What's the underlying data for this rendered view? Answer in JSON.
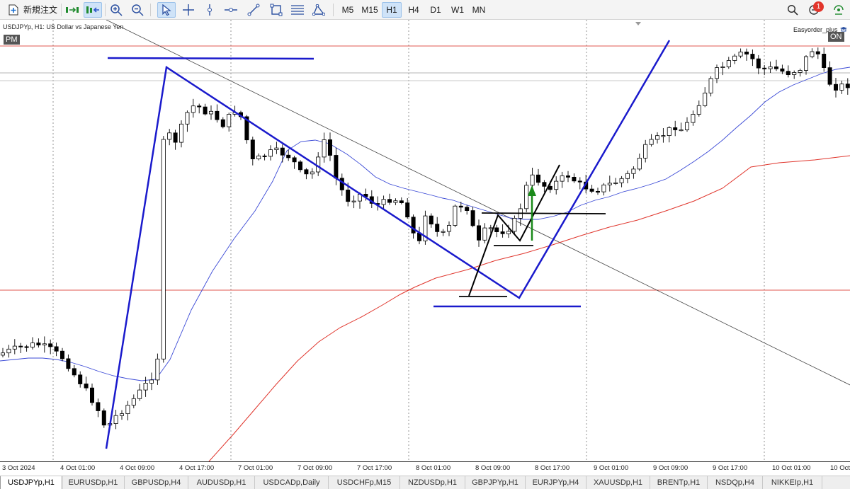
{
  "toolbar": {
    "new_order_label": "新規注文",
    "timeframes": [
      "M5",
      "M15",
      "H1",
      "H4",
      "D1",
      "W1",
      "MN"
    ],
    "active_timeframe": "H1",
    "notification_count": "1",
    "icons": [
      "new-order-icon",
      "algo-trading-icon",
      "one-click-trading-icon",
      "zoom-in-icon",
      "zoom-out-icon",
      "cursor-icon",
      "crosshair-icon",
      "vertical-line-icon",
      "horizontal-line-icon",
      "trendline-icon",
      "rectangle-icon",
      "fibonacci-icon",
      "shapes-icon",
      "search-icon",
      "notification-icon",
      "signal-icon"
    ]
  },
  "chart": {
    "symbol_label": "USDJPYp, H1:  US Dollar vs Japanese Yen",
    "session_badge": "PM",
    "ea_name": "Easyorder_plus",
    "ea_status": "ON",
    "colors": {
      "candle_bull_fill": "#ffffff",
      "candle_bear_fill": "#000000",
      "ma_short": "#3a49d6",
      "ma_long": "#e0352c",
      "horizontal_lines": "#e05a50",
      "drawing_blue": "#1a1acc",
      "drawing_black": "#000000",
      "arrow": "#1a8a1a"
    }
  },
  "time_axis": {
    "labels": [
      "3 Oct 2024",
      "4 Oct 01:00",
      "4 Oct 09:00",
      "4 Oct 17:00",
      "7 Oct 01:00",
      "7 Oct 09:00",
      "7 Oct 17:00",
      "8 Oct 01:00",
      "8 Oct 09:00",
      "8 Oct 17:00",
      "9 Oct 01:00",
      "9 Oct 09:00",
      "9 Oct 17:00",
      "10 Oct 01:00",
      "10 Oct"
    ]
  },
  "tabs": [
    "USDJPYp,H1",
    "EURUSDp,H1",
    "GBPUSDp,H4",
    "AUDUSDp,H1",
    "USDCADp,Daily",
    "USDCHFp,M15",
    "NZDUSDp,H1",
    "GBPJPYp,H1",
    "EURJPYp,H4",
    "XAUUSDp,H1",
    "BRENTp,H1",
    "NSDQp,H4",
    "NIKKEIp,H1"
  ],
  "active_tab": "USDJPYp,H1"
}
